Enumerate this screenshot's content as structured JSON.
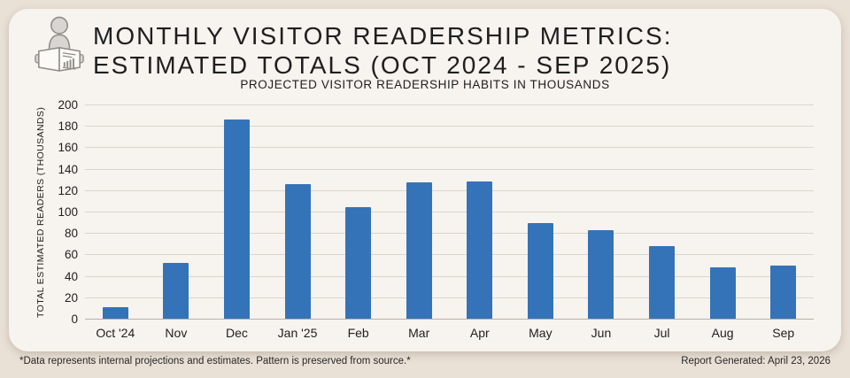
{
  "header": {
    "title_line1": "MONTHLY VISITOR READERSHIP METRICS:",
    "title_line2": "ESTIMATED TOTALS (OCT 2024 - SEP 2025)",
    "subtitle": "PROJECTED VISITOR READERSHIP HABITS IN THOUSANDS",
    "icon": "person-reading-newspaper-icon"
  },
  "chart_data": {
    "type": "bar",
    "title": "PROJECTED VISITOR READERSHIP HABITS IN THOUSANDS",
    "categories": [
      "Oct '24",
      "Nov",
      "Dec",
      "Jan '25",
      "Feb",
      "Mar",
      "Apr",
      "May",
      "Jun",
      "Jul",
      "Aug",
      "Sep"
    ],
    "values": [
      11,
      52,
      186,
      126,
      104,
      127,
      128,
      89,
      83,
      68,
      48,
      50
    ],
    "xlabel": "",
    "ylabel": "TOTAL ESTIMATED READERS (THOUSANDS)",
    "ylim": [
      0,
      200
    ],
    "ytick_step": 20,
    "grid": true,
    "legend": false
  },
  "footer": {
    "note": "*Data represents internal projections and estimates. Pattern is preserved from source.*",
    "generated": "Report Generated: April 23, 2026"
  },
  "colors": {
    "page_bg": "#e9e0d6",
    "card_bg": "#f7f3ee",
    "bar": "#3573b8",
    "grid": "#dcd6cb",
    "axis": "#b9b2a6",
    "text": "#1f1f1f"
  }
}
